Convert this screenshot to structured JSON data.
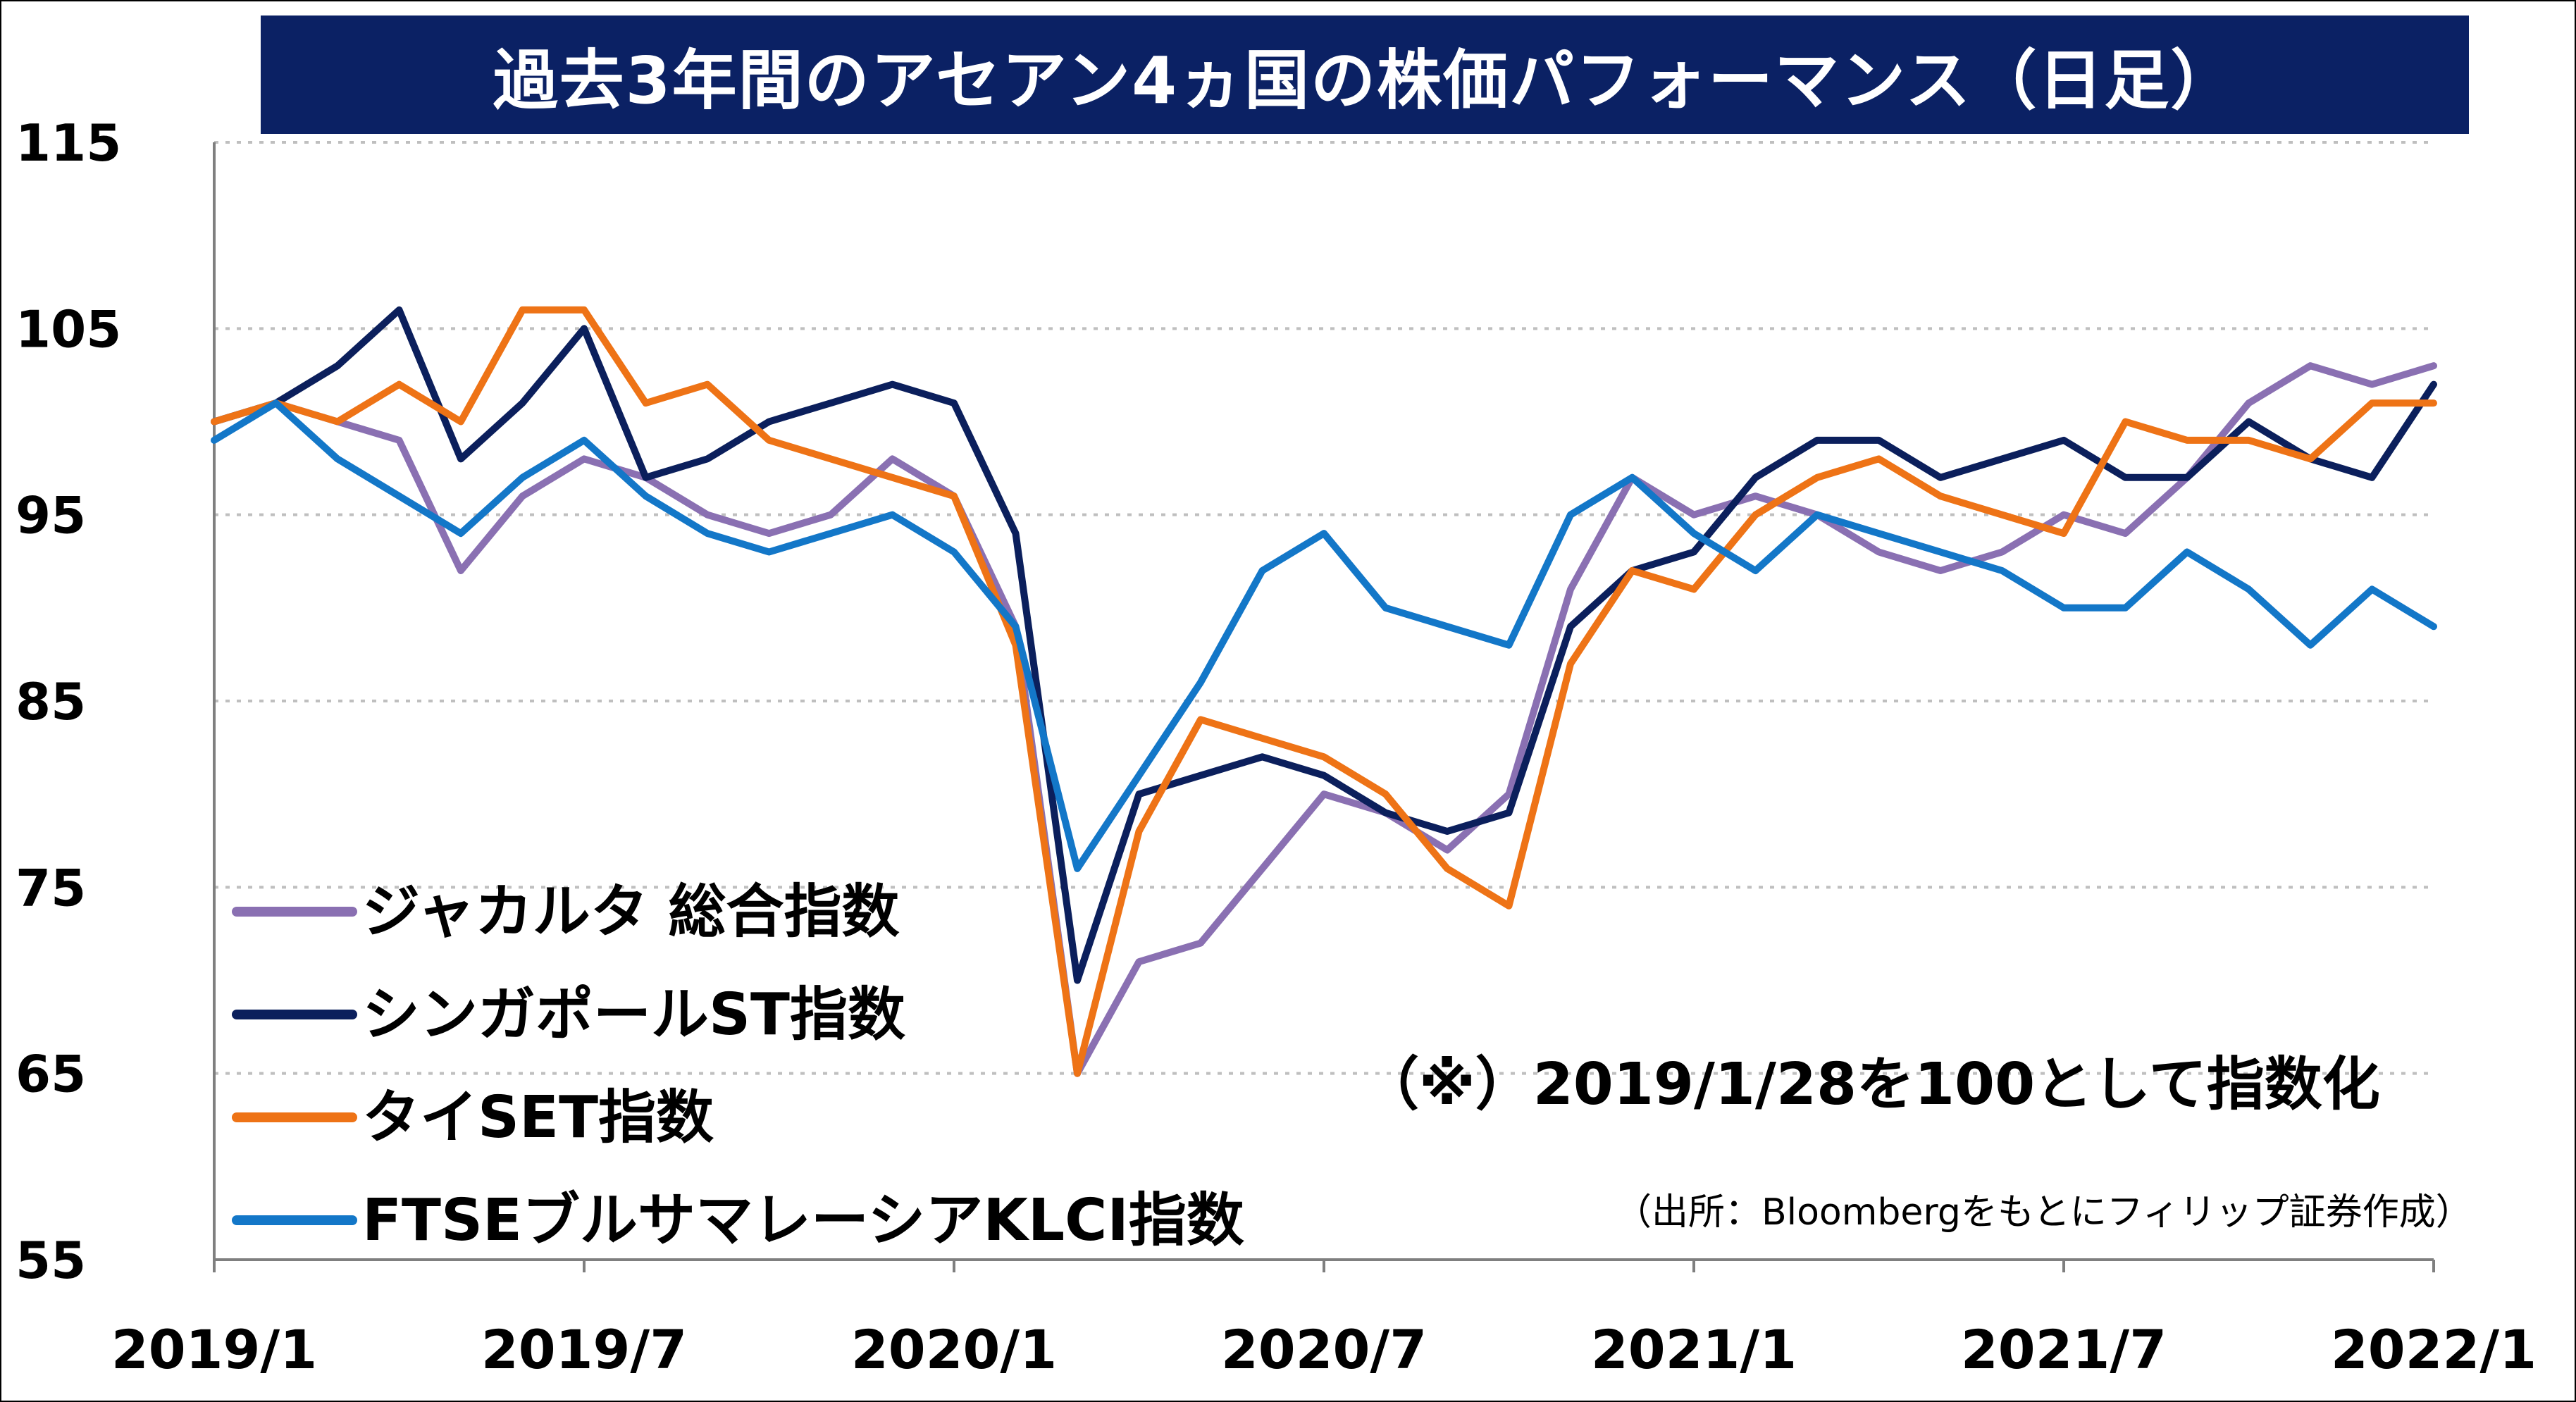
{
  "title": "過去3年間のアセアン4ヵ国の株価パフォーマンス（日足）",
  "note": "（※）2019/1/28を100として指数化",
  "source": "（出所：Bloombergをもとにフィリップ証券作成）",
  "colors": {
    "title_bg": "#0b2164",
    "jakarta": "#8a70b2",
    "singapore": "#0b1f5c",
    "thai": "#ee7316",
    "malaysia": "#1377c8",
    "grid": "#bfbfbf"
  },
  "chart_data": {
    "type": "line",
    "title": "過去3年間のアセアン4ヵ国の株価パフォーマンス（日足）",
    "xlabel": "",
    "ylabel": "",
    "ylim": [
      55,
      115
    ],
    "yticks": [
      "115",
      "105",
      "95",
      "85",
      "75",
      "65",
      "55"
    ],
    "x_tick_labels": [
      "2019/1",
      "2019/7",
      "2020/1",
      "2020/7",
      "2021/1",
      "2021/7",
      "2022/1"
    ],
    "grid": "horizontal dotted",
    "legend_position": "bottom-left",
    "x": [
      "2019/01",
      "2019/02",
      "2019/03",
      "2019/04",
      "2019/05",
      "2019/06",
      "2019/07",
      "2019/08",
      "2019/09",
      "2019/10",
      "2019/11",
      "2019/12",
      "2020/01",
      "2020/02",
      "2020/03",
      "2020/04",
      "2020/05",
      "2020/06",
      "2020/07",
      "2020/08",
      "2020/09",
      "2020/10",
      "2020/11",
      "2020/12",
      "2021/01",
      "2021/02",
      "2021/03",
      "2021/04",
      "2021/05",
      "2021/06",
      "2021/07",
      "2021/08",
      "2021/09",
      "2021/10",
      "2021/11",
      "2021/12",
      "2022/01"
    ],
    "series": [
      {
        "name": "ジャカルタ 総合指数",
        "color_key": "jakarta",
        "values": [
          100,
          101,
          100,
          99,
          92,
          96,
          98,
          97,
          95,
          94,
          95,
          98,
          96,
          89,
          65,
          71,
          72,
          76,
          80,
          79,
          77,
          80,
          91,
          97,
          95,
          96,
          95,
          93,
          92,
          93,
          95,
          94,
          97,
          101,
          103,
          102,
          103
        ]
      },
      {
        "name": "シンガポールST指数",
        "color_key": "singapore",
        "values": [
          100,
          101,
          103,
          106,
          98,
          101,
          105,
          97,
          98,
          100,
          101,
          102,
          101,
          94,
          70,
          80,
          81,
          82,
          81,
          79,
          78,
          79,
          89,
          92,
          93,
          97,
          99,
          99,
          97,
          98,
          99,
          97,
          97,
          100,
          98,
          97,
          102
        ]
      },
      {
        "name": "タイSET指数",
        "color_key": "thai",
        "values": [
          100,
          101,
          100,
          102,
          100,
          106,
          106,
          101,
          102,
          99,
          98,
          97,
          96,
          88,
          65,
          78,
          84,
          83,
          82,
          80,
          76,
          74,
          87,
          92,
          91,
          95,
          97,
          98,
          96,
          95,
          94,
          100,
          99,
          99,
          98,
          101,
          101
        ]
      },
      {
        "name": "FTSEブルサマレーシアKLCI指数",
        "color_key": "malaysia",
        "values": [
          99,
          101,
          98,
          96,
          94,
          97,
          99,
          96,
          94,
          93,
          94,
          95,
          93,
          89,
          76,
          81,
          86,
          92,
          94,
          90,
          89,
          88,
          95,
          97,
          94,
          92,
          95,
          94,
          93,
          92,
          90,
          90,
          93,
          91,
          88,
          91,
          89
        ]
      }
    ]
  }
}
